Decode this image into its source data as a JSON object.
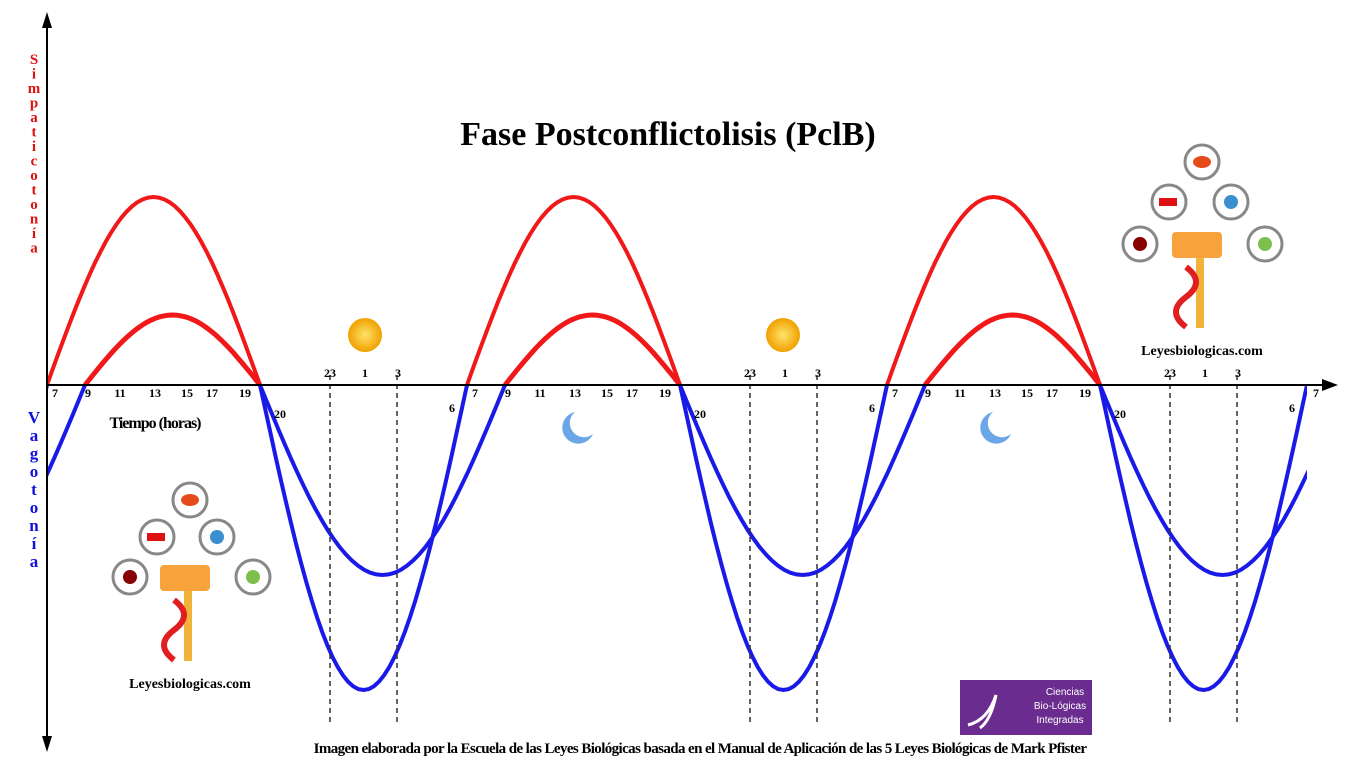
{
  "title": "Fase Postconflictolisis (PclB)",
  "upper_axis_label": "Simpaticotonía",
  "lower_axis_label": "Vagotonía",
  "x_axis_label": "Tiempo (horas)",
  "hours": [
    "7",
    "9",
    "11",
    "13",
    "15",
    "17",
    "19",
    "20",
    "23",
    "1",
    "3",
    "6",
    "7",
    "9",
    "11",
    "13",
    "15",
    "17",
    "19",
    "20",
    "23",
    "1",
    "3",
    "6",
    "7",
    "9",
    "11",
    "13",
    "15",
    "17",
    "19",
    "20",
    "23",
    "1",
    "3",
    "6",
    "7"
  ],
  "logos": [
    "Leyesbiologicas.com",
    "Leyesbiologicas.com"
  ],
  "badge": [
    "Ciencias",
    "Bio-Lógicas",
    "Integradas"
  ],
  "footer": "Imagen elaborada por la Escuela de las Leyes Biológicas basada en el Manual de Aplicación de las 5 Leyes Biológicas de Mark Pfister"
}
